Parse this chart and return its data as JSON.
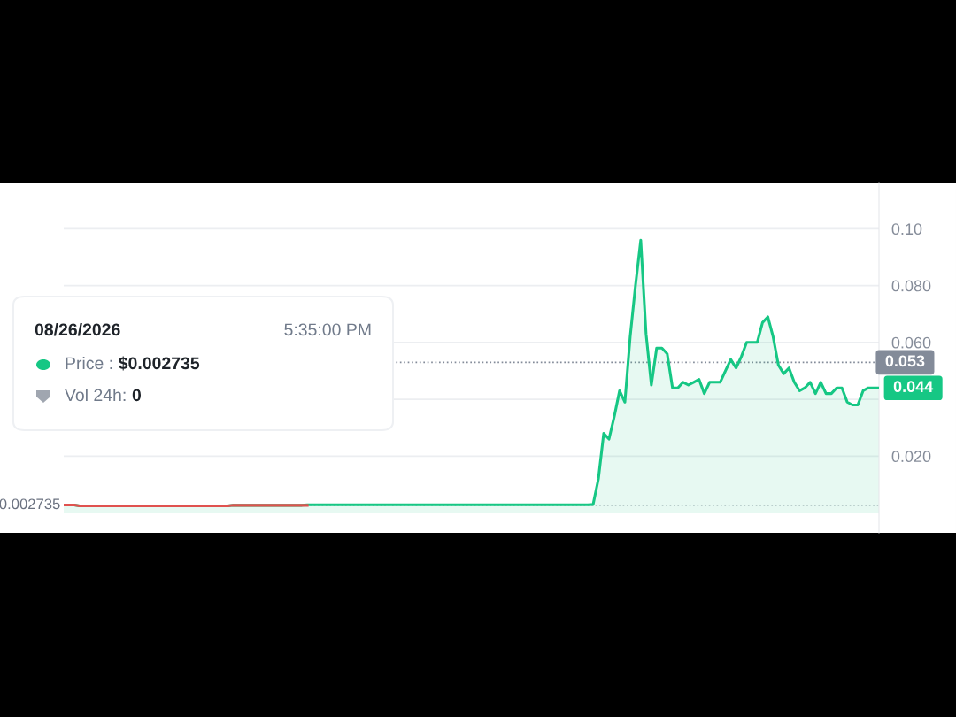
{
  "chart_data": {
    "type": "area",
    "categories": [
      null,
      null,
      null,
      null,
      null,
      null,
      null,
      null,
      null,
      null,
      null,
      null,
      null,
      null,
      null,
      null,
      null,
      null,
      null,
      null,
      null,
      null,
      null,
      null,
      null,
      null,
      null,
      null,
      null,
      null,
      null,
      null,
      null,
      null,
      null,
      null,
      null,
      null,
      null,
      null,
      null,
      null,
      null,
      null,
      null,
      null,
      null,
      null,
      null,
      null,
      null,
      null,
      null,
      null,
      null,
      null,
      null,
      null,
      null,
      null,
      null,
      null,
      null,
      null,
      null,
      null,
      null,
      null,
      null,
      null,
      null,
      null,
      null,
      null,
      null,
      null,
      null,
      null,
      null,
      null,
      null,
      null,
      null,
      null,
      null,
      null,
      null,
      null,
      null,
      null,
      null,
      null,
      null,
      null,
      null,
      null,
      null,
      null,
      null,
      null,
      null,
      null,
      null,
      null,
      null,
      null,
      null,
      null,
      null,
      null,
      null,
      null,
      null,
      null,
      null,
      null,
      null,
      null,
      null,
      null,
      null,
      null,
      null,
      null,
      null,
      null,
      null,
      null,
      null,
      null,
      null,
      null,
      null,
      null,
      null,
      null,
      null,
      null,
      null,
      null,
      null,
      null,
      null,
      null,
      null,
      null,
      null,
      null,
      null,
      null,
      null,
      null,
      null,
      null,
      null
    ],
    "series": [
      {
        "type": "line",
        "color": "#e0524f",
        "values": [
          0.0028,
          0.0028,
          0.0028,
          0.0025,
          0.0025,
          0.0025,
          0.0025,
          0.0025,
          0.0025,
          0.0025,
          0.0025,
          0.0025,
          0.0025,
          0.0025,
          0.0025,
          0.0025,
          0.0025,
          0.0025,
          0.0025,
          0.0025,
          0.0025,
          0.0025,
          0.0025,
          0.0025,
          0.0025,
          0.0025,
          0.0025,
          0.0025,
          0.0025,
          0.0025,
          0.0025,
          0.0025,
          0.0027,
          0.0027,
          0.0027,
          0.0027,
          0.0027,
          0.0027,
          0.0027,
          0.0027,
          0.0027,
          0.0027,
          0.0027,
          0.0027,
          0.0027,
          0.0027,
          0.0027,
          null,
          null,
          null,
          null,
          null,
          null,
          null,
          null,
          null,
          null,
          null,
          null,
          null,
          null,
          null,
          null,
          null,
          null,
          null,
          null,
          null,
          null,
          null,
          null,
          null,
          null,
          null,
          null,
          null,
          null,
          null,
          null,
          null,
          null,
          null,
          null,
          null,
          null,
          null,
          null,
          null,
          null,
          null,
          null,
          null,
          null,
          null,
          null,
          null,
          null,
          null,
          null,
          null,
          null,
          null,
          null,
          null,
          null,
          null,
          null,
          null,
          null,
          null,
          null,
          null,
          null,
          null,
          null,
          null,
          null,
          null,
          null,
          null,
          null,
          null,
          null,
          null,
          null,
          null,
          null,
          null,
          null,
          null,
          null,
          null,
          null,
          null,
          null,
          null,
          null,
          null,
          null,
          null,
          null,
          null,
          null,
          null,
          null,
          null,
          null,
          null,
          null,
          null,
          null,
          null,
          null,
          null,
          null
        ]
      },
      {
        "color": "#16c784",
        "values": [
          0.0028,
          0.0028,
          0.0028,
          0.0025,
          0.0025,
          0.0025,
          0.0025,
          0.0025,
          0.0025,
          0.0025,
          0.0025,
          0.0025,
          0.0025,
          0.0025,
          0.0025,
          0.0025,
          0.0025,
          0.0025,
          0.0025,
          0.0025,
          0.0025,
          0.0025,
          0.0025,
          0.0025,
          0.0025,
          0.0025,
          0.0025,
          0.0025,
          0.0025,
          0.0025,
          0.0025,
          0.0025,
          0.0027,
          0.0027,
          0.0027,
          0.0027,
          0.0027,
          0.0027,
          0.0027,
          0.0027,
          0.0027,
          0.0027,
          0.0027,
          0.0027,
          0.0027,
          0.0027,
          0.0029,
          0.0029,
          0.0029,
          0.0029,
          0.0029,
          0.0029,
          0.0029,
          0.0029,
          0.0029,
          0.0029,
          0.0029,
          0.0029,
          0.0029,
          0.0029,
          0.0029,
          0.0029,
          0.0029,
          0.0029,
          0.0029,
          0.0029,
          0.0029,
          0.0029,
          0.0029,
          0.0029,
          0.0029,
          0.0029,
          0.0029,
          0.0029,
          0.0029,
          0.0029,
          0.0029,
          0.0029,
          0.0029,
          0.0029,
          0.0029,
          0.0029,
          0.0029,
          0.0029,
          0.0029,
          0.0029,
          0.0029,
          0.0029,
          0.0029,
          0.0029,
          0.0029,
          0.0029,
          0.0029,
          0.0029,
          0.0029,
          0.0029,
          0.0029,
          0.0029,
          0.0029,
          0.0029,
          0.003,
          0.012,
          0.028,
          0.026,
          0.034,
          0.043,
          0.039,
          0.062,
          0.08,
          0.096,
          0.063,
          0.045,
          0.058,
          0.058,
          0.056,
          0.044,
          0.044,
          0.046,
          0.045,
          0.046,
          0.047,
          0.042,
          0.046,
          0.046,
          0.046,
          0.05,
          0.054,
          0.051,
          0.055,
          0.06,
          0.06,
          0.06,
          0.067,
          0.069,
          0.062,
          0.052,
          0.049,
          0.051,
          0.046,
          0.043,
          0.044,
          0.046,
          0.042,
          0.046,
          0.042,
          0.042,
          0.044,
          0.044,
          0.039,
          0.038,
          0.038,
          0.043,
          0.044,
          0.044,
          0.044
        ]
      }
    ],
    "ylim": [
      -0.007,
      0.116
    ],
    "yticks": [
      {
        "value": 0.02,
        "label": "0.020"
      },
      {
        "value": 0.04,
        "label": null
      },
      {
        "value": 0.06,
        "label": "0.060"
      },
      {
        "value": 0.08,
        "label": "0.080"
      },
      {
        "value": 0.1,
        "label": "0.10"
      }
    ],
    "tick_labels": "y",
    "grid": "y",
    "line_style": "solid",
    "ref_lines": [
      {
        "axis": "y",
        "value": 0.053,
        "label": "0.053",
        "color": "#838b99",
        "line_style": "dotted"
      },
      {
        "axis": "y",
        "value": 0.002735,
        "label": "0.002735",
        "color": "#9aa0aa",
        "line_style": "dotted"
      }
    ],
    "annotations": [
      "0.044",
      "08/26/2026",
      "5:35:00 PM",
      "Price : $0.002735",
      "Vol 24h: 0"
    ]
  }
}
